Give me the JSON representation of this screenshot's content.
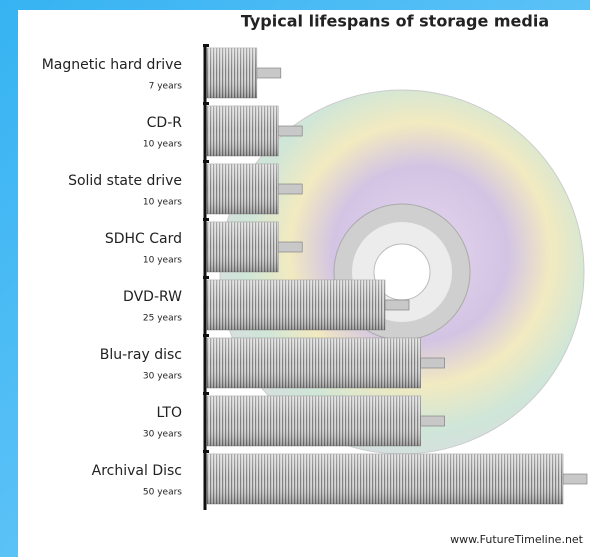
{
  "chart_data": {
    "type": "bar",
    "orientation": "horizontal",
    "title": "Typical lifespans of storage media",
    "categories": [
      "Magnetic hard drive",
      "CD-R",
      "Solid state drive",
      "SDHC Card",
      "DVD-RW",
      "Blu-ray disc",
      "LTO",
      "Archival Disc"
    ],
    "values": [
      7,
      10,
      10,
      10,
      25,
      30,
      30,
      50
    ],
    "value_labels": [
      "7 years",
      "10 years",
      "10 years",
      "10 years",
      "25 years",
      "30 years",
      "30 years",
      "50 years"
    ],
    "color": "#9a9a9a",
    "source": "www.FutureTimeline.net"
  }
}
